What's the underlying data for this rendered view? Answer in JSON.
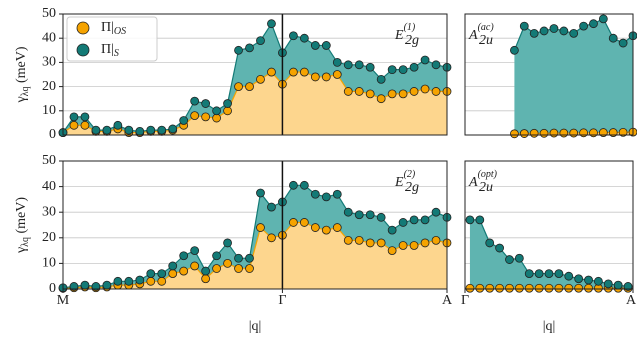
{
  "chart_data": [
    {
      "type": "area",
      "ylim": [
        0,
        50
      ],
      "yticks": [
        0,
        10,
        20,
        30,
        40,
        50
      ],
      "tick_labels": true,
      "grid": true,
      "xlim": [
        0,
        35
      ],
      "vline": 20,
      "ylabel": {
        "text": "γ",
        "sub": "λq",
        "rest": " (meV)"
      },
      "annotation": {
        "text": "E",
        "sub": "2g",
        "sup": "(1)"
      },
      "legend": "upper left",
      "x": [
        0,
        1,
        2,
        3,
        4,
        5,
        6,
        7,
        8,
        9,
        10,
        11,
        12,
        13,
        14,
        15,
        16,
        17,
        18,
        19,
        20,
        21,
        22,
        23,
        24,
        25,
        26,
        27,
        28,
        29,
        30,
        31,
        32,
        33,
        34,
        35
      ],
      "series": [
        {
          "name": "Π|",
          "name_sub": "OS",
          "color": "#f5a300",
          "fill": "#fdd68e",
          "values": [
            1,
            4,
            4,
            1.5,
            1.5,
            2.5,
            1,
            1,
            1.5,
            1.5,
            2,
            4,
            8,
            7.5,
            7,
            10,
            20,
            20,
            23,
            26,
            21,
            26,
            26,
            24,
            24,
            25,
            18,
            18,
            17,
            15,
            17,
            17,
            18,
            19,
            18,
            18
          ]
        },
        {
          "name": "Π|",
          "name_sub": "S",
          "color": "#137a76",
          "fill": "#5fb4b0",
          "values": [
            1,
            7.5,
            7.5,
            2,
            2,
            4,
            2,
            1.5,
            2,
            2,
            2.5,
            6,
            14,
            13,
            10,
            13,
            35,
            36,
            39,
            46,
            34,
            41,
            40,
            37,
            37,
            30,
            29,
            29,
            28,
            23,
            27,
            27,
            28,
            31,
            29,
            28
          ]
        }
      ]
    },
    {
      "type": "area",
      "ylim": [
        0,
        50
      ],
      "yticks": [
        0,
        10,
        20,
        30,
        40,
        50
      ],
      "tick_labels": false,
      "grid": true,
      "xlim": [
        0,
        17
      ],
      "annotation": {
        "text": "A",
        "sub": "2u",
        "sup": "(ac)"
      },
      "x": [
        5,
        6,
        7,
        8,
        9,
        10,
        11,
        12,
        13,
        14,
        15,
        16,
        17
      ],
      "series": [
        {
          "name": "Π|",
          "name_sub": "OS",
          "color": "#f5a300",
          "fill": "#fdd68e",
          "values": [
            0.5,
            0.6,
            0.7,
            0.7,
            0.8,
            0.8,
            0.8,
            0.9,
            0.9,
            1,
            1,
            1.1,
            1.2
          ]
        },
        {
          "name": "Π|",
          "name_sub": "S",
          "color": "#137a76",
          "fill": "#5fb4b0",
          "values": [
            35,
            45,
            42,
            43,
            44,
            43,
            42,
            45,
            46,
            48,
            40,
            38,
            41
          ]
        }
      ]
    },
    {
      "type": "area",
      "ylim": [
        0,
        50
      ],
      "yticks": [
        0,
        10,
        20,
        30,
        40,
        50
      ],
      "tick_labels": true,
      "grid": true,
      "xlim": [
        0,
        35
      ],
      "vline": 20,
      "xticks": [
        {
          "value": 0,
          "label": "M"
        },
        {
          "value": 20,
          "label": "Γ"
        },
        {
          "value": 35,
          "label": "A"
        }
      ],
      "xlabel": "|q|",
      "ylabel": {
        "text": "γ",
        "sub": "λq",
        "rest": " (meV)"
      },
      "annotation": {
        "text": "E",
        "sub": "2g",
        "sup": "(2)"
      },
      "x": [
        0,
        1,
        2,
        3,
        4,
        5,
        6,
        7,
        8,
        9,
        10,
        11,
        12,
        13,
        14,
        15,
        16,
        17,
        18,
        19,
        20,
        21,
        22,
        23,
        24,
        25,
        26,
        27,
        28,
        29,
        30,
        31,
        32,
        33,
        34,
        35
      ],
      "series": [
        {
          "name": "Π|",
          "name_sub": "OS",
          "color": "#f5a300",
          "fill": "#fdd68e",
          "values": [
            0.3,
            0.5,
            0.8,
            0.5,
            0.8,
            1.5,
            1.5,
            2,
            3,
            3,
            6,
            7,
            9,
            4,
            8,
            10,
            8,
            8,
            24,
            20,
            21,
            26,
            26,
            24,
            23,
            24,
            19,
            19,
            18,
            18,
            15,
            17,
            17,
            18,
            19,
            18
          ]
        },
        {
          "name": "Π|",
          "name_sub": "S",
          "color": "#137a76",
          "fill": "#5fb4b0",
          "values": [
            0.5,
            1,
            1.5,
            1,
            1.5,
            3,
            3,
            3.5,
            6,
            6,
            9,
            13,
            15,
            7,
            13,
            18,
            12,
            12,
            37.5,
            32,
            34,
            40.5,
            40.5,
            37,
            36,
            37,
            30,
            29,
            29,
            28,
            23,
            26,
            27,
            27,
            30,
            28
          ]
        }
      ]
    },
    {
      "type": "area",
      "ylim": [
        0,
        50
      ],
      "yticks": [
        0,
        10,
        20,
        30,
        40,
        50
      ],
      "tick_labels": false,
      "grid": true,
      "xlim": [
        0,
        17
      ],
      "xticks": [
        {
          "value": 0,
          "label": "Γ"
        },
        {
          "value": 17,
          "label": "A"
        }
      ],
      "xlabel": "|q|",
      "annotation": {
        "text": "A",
        "sub": "2u",
        "sup": "(opt)"
      },
      "x": [
        0.5,
        1.5,
        2.5,
        3.5,
        4.5,
        5.5,
        6.5,
        7.5,
        8.5,
        9.5,
        10.5,
        11.5,
        12.5,
        13.5,
        14.5,
        15.5,
        16.5
      ],
      "series": [
        {
          "name": "Π|",
          "name_sub": "OS",
          "color": "#f5a300",
          "fill": "#fdd68e",
          "values": [
            0.3,
            0.3,
            0.3,
            0.3,
            0.3,
            0.3,
            0.3,
            0.3,
            0.3,
            0.3,
            0.3,
            0.3,
            0.3,
            0.3,
            0.3,
            0.3,
            0.3
          ]
        },
        {
          "name": "Π|",
          "name_sub": "S",
          "color": "#137a76",
          "fill": "#5fb4b0",
          "values": [
            27,
            27,
            18,
            16,
            11.5,
            12,
            6,
            6,
            6,
            6,
            5,
            4,
            3.5,
            3,
            2,
            1.5,
            1
          ]
        }
      ]
    }
  ]
}
